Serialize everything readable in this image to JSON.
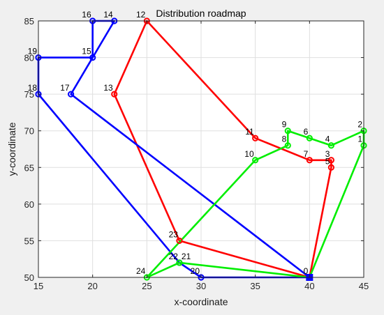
{
  "chart_data": {
    "type": "line",
    "title": "Distribution roadmap",
    "xlabel": "x-coordinate",
    "ylabel": "y-coordinate",
    "xlim": [
      15,
      45
    ],
    "ylim": [
      50,
      85
    ],
    "xticks": [
      "15",
      "20",
      "25",
      "30",
      "35",
      "40",
      "45"
    ],
    "yticks": [
      "50",
      "55",
      "60",
      "65",
      "70",
      "75",
      "80",
      "85"
    ],
    "grid": true,
    "legend": "none",
    "depot": {
      "label": "0",
      "x": 40,
      "y": 50,
      "color": "#0000ff",
      "marker": "square"
    },
    "nodes": [
      {
        "id": "0",
        "x": 40,
        "y": 50,
        "label_anchor": "nw"
      },
      {
        "id": "1",
        "x": 45,
        "y": 68,
        "label_anchor": "nw"
      },
      {
        "id": "2",
        "x": 45,
        "y": 70,
        "label_anchor": "nw"
      },
      {
        "id": "3",
        "x": 42,
        "y": 66,
        "label_anchor": "nw"
      },
      {
        "id": "4",
        "x": 42,
        "y": 68,
        "label_anchor": "nw"
      },
      {
        "id": "5",
        "x": 42,
        "y": 65,
        "label_anchor": "nw"
      },
      {
        "id": "6",
        "x": 40,
        "y": 69,
        "label_anchor": "nw"
      },
      {
        "id": "7",
        "x": 40,
        "y": 66,
        "label_anchor": "nw"
      },
      {
        "id": "8",
        "x": 38,
        "y": 68,
        "label_anchor": "nw"
      },
      {
        "id": "9",
        "x": 38,
        "y": 70,
        "label_anchor": "nw"
      },
      {
        "id": "10",
        "x": 35,
        "y": 66,
        "label_anchor": "nw"
      },
      {
        "id": "11",
        "x": 35,
        "y": 69,
        "label_anchor": "nw"
      },
      {
        "id": "12",
        "x": 25,
        "y": 85,
        "label_anchor": "nw"
      },
      {
        "id": "13",
        "x": 22,
        "y": 75,
        "label_anchor": "nw"
      },
      {
        "id": "14",
        "x": 22,
        "y": 85,
        "label_anchor": "nw"
      },
      {
        "id": "15",
        "x": 20,
        "y": 80,
        "label_anchor": "nw"
      },
      {
        "id": "16",
        "x": 20,
        "y": 85,
        "label_anchor": "nw"
      },
      {
        "id": "17",
        "x": 18,
        "y": 75,
        "label_anchor": "nw"
      },
      {
        "id": "18",
        "x": 15,
        "y": 75,
        "label_anchor": "nw"
      },
      {
        "id": "19",
        "x": 15,
        "y": 80,
        "label_anchor": "nw"
      },
      {
        "id": "20",
        "x": 30,
        "y": 50,
        "label_anchor": "nw"
      },
      {
        "id": "21",
        "x": 28,
        "y": 52,
        "label_anchor": "ne"
      },
      {
        "id": "22",
        "x": 28,
        "y": 52,
        "label_anchor": "nw"
      },
      {
        "id": "23",
        "x": 28,
        "y": 55,
        "label_anchor": "nw"
      },
      {
        "id": "24",
        "x": 25,
        "y": 50,
        "label_anchor": "nw"
      }
    ],
    "series": [
      {
        "color": "#ff0000",
        "route": [
          "0",
          "23",
          "13",
          "12",
          "11",
          "7",
          "3",
          "5",
          "0"
        ],
        "points": [
          [
            40,
            50
          ],
          [
            28,
            55
          ],
          [
            22,
            75
          ],
          [
            25,
            85
          ],
          [
            35,
            69
          ],
          [
            40,
            66
          ],
          [
            42,
            66
          ],
          [
            42,
            65
          ],
          [
            40,
            50
          ]
        ]
      },
      {
        "color": "#0000ff",
        "route": [
          "0",
          "17",
          "14",
          "16",
          "15",
          "19",
          "18",
          "22",
          "20",
          "0"
        ],
        "points": [
          [
            40,
            50
          ],
          [
            18,
            75
          ],
          [
            22,
            85
          ],
          [
            20,
            85
          ],
          [
            20,
            80
          ],
          [
            15,
            80
          ],
          [
            15,
            75
          ],
          [
            28,
            52
          ],
          [
            30,
            50
          ],
          [
            40,
            50
          ]
        ]
      },
      {
        "color": "#00ee00",
        "route": [
          "0",
          "21",
          "24",
          "10",
          "8",
          "9",
          "6",
          "4",
          "2",
          "1",
          "0"
        ],
        "points": [
          [
            40,
            50
          ],
          [
            28,
            52
          ],
          [
            25,
            50
          ],
          [
            35,
            66
          ],
          [
            38,
            68
          ],
          [
            38,
            70
          ],
          [
            40,
            69
          ],
          [
            42,
            68
          ],
          [
            45,
            70
          ],
          [
            45,
            68
          ],
          [
            40,
            50
          ]
        ]
      }
    ]
  }
}
